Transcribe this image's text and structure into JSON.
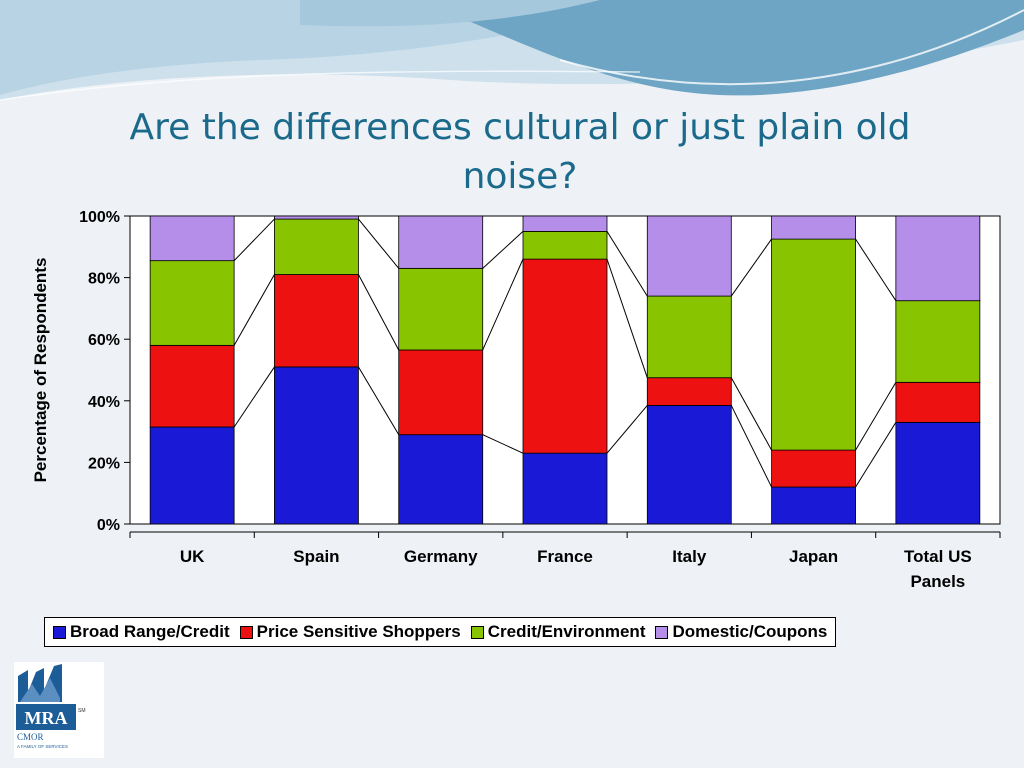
{
  "slide": {
    "title": "Are the differences cultural or just plain old noise?",
    "logo_text": "MRA",
    "logo_subtext": "CMOR",
    "logo_tagline": "A FAMILY OF SERVICES"
  },
  "chart_data": {
    "type": "bar",
    "stacked": true,
    "percent": true,
    "ylabel": "Percentage of Respondents",
    "ylim": [
      0,
      100
    ],
    "yticks": [
      "0%",
      "20%",
      "40%",
      "60%",
      "80%",
      "100%"
    ],
    "categories": [
      "UK",
      "Spain",
      "Germany",
      "France",
      "Italy",
      "Japan",
      "Total US Panels"
    ],
    "series": [
      {
        "name": "Broad Range/Credit",
        "color": "#1a1ad6",
        "values": [
          31.5,
          51,
          29,
          23,
          38.5,
          12,
          33
        ]
      },
      {
        "name": "Price Sensitive Shoppers",
        "color": "#ee1111",
        "values": [
          26.5,
          30,
          27.5,
          63,
          9,
          12,
          13
        ]
      },
      {
        "name": "Credit/Environment",
        "color": "#88c400",
        "values": [
          27.5,
          18,
          26.5,
          9,
          26.5,
          68.5,
          26.5
        ]
      },
      {
        "name": "Domestic/Coupons",
        "color": "#b48ee8",
        "values": [
          14.5,
          1,
          17,
          5,
          26,
          7.5,
          27.5
        ]
      }
    ],
    "legend_position": "bottom",
    "connector_lines": true,
    "grid": false
  }
}
